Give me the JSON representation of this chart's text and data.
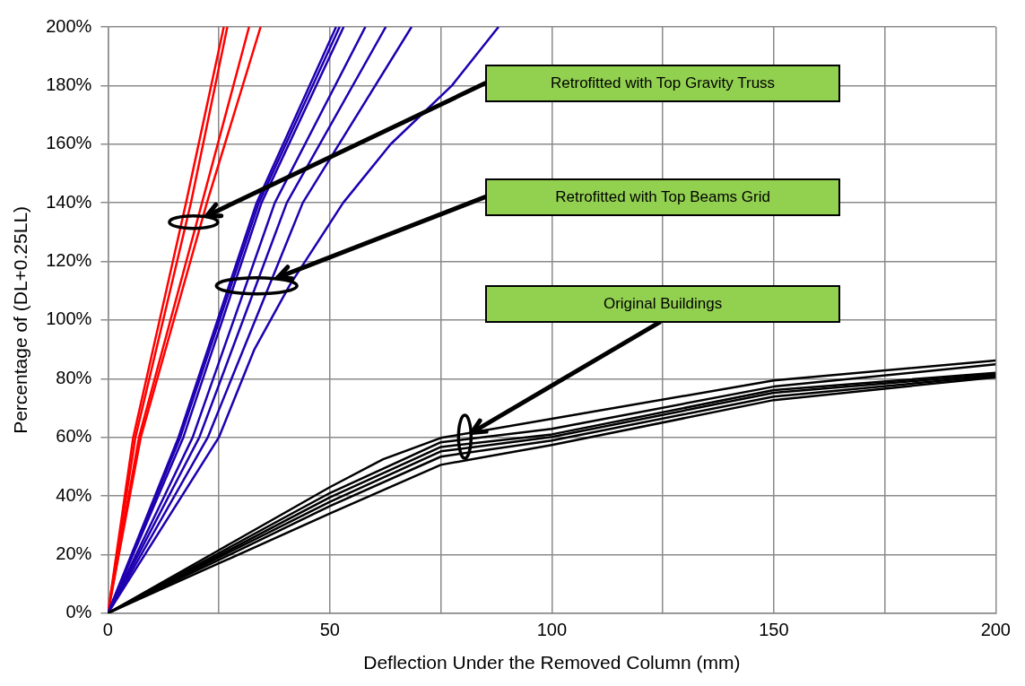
{
  "chart_data": {
    "type": "line",
    "xlabel": "Deflection Under the Removed Column (mm)",
    "ylabel": "Percentage of (DL+0.25LL)",
    "xlim": [
      0,
      200
    ],
    "xticks": [
      0,
      {
        "value": 25,
        "label": null
      },
      50,
      {
        "value": 75,
        "label": null
      },
      100,
      {
        "value": 125,
        "label": null
      },
      150,
      {
        "value": 175,
        "label": null
      },
      200
    ],
    "ylim": [
      0,
      200
    ],
    "yticks": [
      {
        "value": 0,
        "label": "0%"
      },
      {
        "value": 20,
        "label": "20%"
      },
      {
        "value": 40,
        "label": "40%"
      },
      {
        "value": 60,
        "label": "60%"
      },
      {
        "value": 80,
        "label": "80%"
      },
      {
        "value": 100,
        "label": "100%"
      },
      {
        "value": 120,
        "label": "120%"
      },
      {
        "value": 140,
        "label": "140%"
      },
      {
        "value": 160,
        "label": "160%"
      },
      {
        "value": 180,
        "label": "180%"
      },
      {
        "value": 200,
        "label": "200%"
      }
    ],
    "grid": true,
    "legend": false,
    "marker": "none",
    "line_style": "solid",
    "series": [
      {
        "color": "#ff0000",
        "x": [
          0,
          5.7,
          17.6,
          26.1
        ],
        "values": [
          0,
          60,
          140,
          200
        ]
      },
      {
        "color": "#ff0000",
        "x": [
          0,
          6.2,
          18.7,
          26.9
        ],
        "values": [
          0,
          60,
          140,
          200
        ]
      },
      {
        "color": "#ff0000",
        "x": [
          0,
          7,
          21.2,
          31.8
        ],
        "values": [
          0,
          60,
          140,
          200
        ]
      },
      {
        "color": "#ff0000",
        "x": [
          0,
          7.4,
          22.3,
          34.4
        ],
        "values": [
          0,
          60,
          140,
          200
        ]
      },
      {
        "color": "#1f00b0",
        "x": [
          0,
          15.9,
          33.5,
          51.4
        ],
        "values": [
          0,
          60,
          140,
          200
        ]
      },
      {
        "color": "#1f00b0",
        "x": [
          0,
          16.3,
          34,
          52.2
        ],
        "values": [
          0,
          60,
          140,
          200
        ]
      },
      {
        "color": "#1f00b0",
        "x": [
          0,
          17,
          34.6,
          53.1
        ],
        "values": [
          0,
          60,
          140,
          200
        ]
      },
      {
        "color": "#1f00b0",
        "x": [
          0,
          19.1,
          37.6,
          58
        ],
        "values": [
          0,
          60,
          140,
          200
        ]
      },
      {
        "color": "#1f00b0",
        "x": [
          0,
          20.6,
          40.3,
          62.6
        ],
        "values": [
          0,
          60,
          140,
          200
        ]
      },
      {
        "color": "#1f00b0",
        "x": [
          0,
          22.5,
          43.9,
          68.4
        ],
        "values": [
          0,
          60,
          140,
          200
        ]
      },
      {
        "color": "#1f00b0",
        "x": [
          0,
          25,
          33,
          41,
          53,
          63.7,
          77.5,
          88
        ],
        "values": [
          0,
          60,
          90,
          112,
          140,
          160,
          180,
          200
        ]
      },
      {
        "color": "#000000",
        "x": [
          0,
          25,
          50,
          62,
          75,
          100,
          150,
          200
        ],
        "values": [
          0,
          21.5,
          43,
          52.5,
          59.8,
          66.3,
          79.4,
          86.2
        ]
      },
      {
        "color": "#000000",
        "x": [
          0,
          25,
          50,
          75,
          100,
          150,
          200
        ],
        "values": [
          0,
          20.5,
          41,
          58.3,
          62.9,
          77.3,
          84.9
        ]
      },
      {
        "color": "#000000",
        "x": [
          0,
          25,
          50,
          75,
          100,
          150,
          200
        ],
        "values": [
          0,
          19.7,
          39.5,
          56.7,
          61,
          76.1,
          82
        ]
      },
      {
        "color": "#000000",
        "x": [
          0,
          25,
          50,
          75,
          100,
          150,
          200
        ],
        "values": [
          0,
          19,
          38,
          55.2,
          60.1,
          75.2,
          81.5
        ]
      },
      {
        "color": "#000000",
        "x": [
          0,
          25,
          50,
          75,
          100,
          150,
          200
        ],
        "values": [
          0,
          18.2,
          36.5,
          53.4,
          58.9,
          73.9,
          81
        ]
      },
      {
        "color": "#000000",
        "x": [
          0,
          25,
          50,
          75,
          100,
          150,
          200
        ],
        "values": [
          0,
          17,
          34,
          50.6,
          57.4,
          72.7,
          80.5
        ]
      }
    ],
    "annotations": [
      "Retrofitted with Top Gravity Truss",
      "Retrofitted with Top Beams Grid",
      {
        "text": "Original Buildings",
        "x": 82,
        "y": 61.6
      }
    ]
  }
}
